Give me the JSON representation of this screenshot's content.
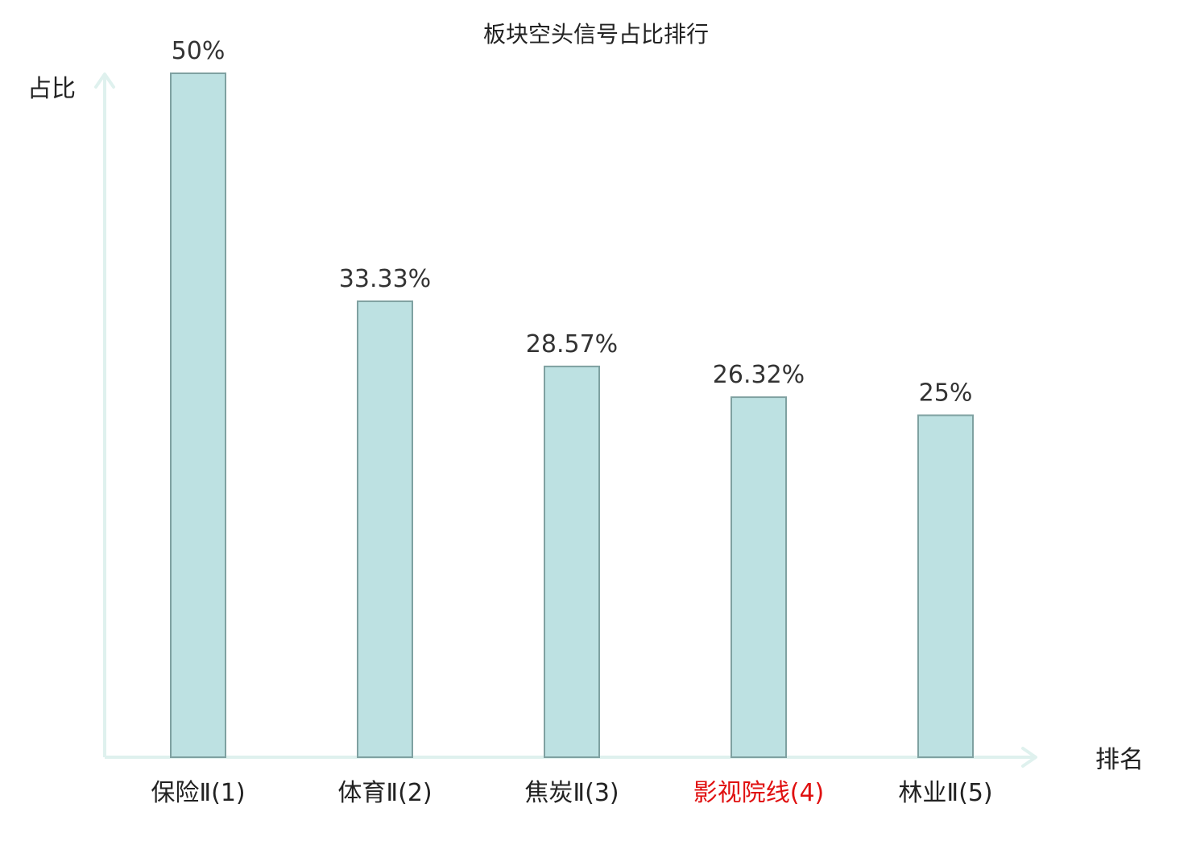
{
  "chart_data": {
    "type": "bar",
    "title": "板块空头信号占比排行",
    "ylabel": "占比",
    "xlabel": "排名",
    "categories": [
      "保险Ⅱ(1)",
      "体育Ⅱ(2)",
      "焦炭Ⅱ(3)",
      "影视院线(4)",
      "林业Ⅱ(5)"
    ],
    "values": [
      50,
      33.33,
      28.57,
      26.32,
      25
    ],
    "value_labels": [
      "50%",
      "33.33%",
      "28.57%",
      "26.32%",
      "25%"
    ],
    "highlight_index": 3,
    "ylim": [
      0,
      50
    ],
    "grid": false,
    "legend": "none",
    "colors": {
      "bar_fill": "#bde1e2",
      "bar_stroke": "#7fa1a1",
      "axis": "#dff1ee",
      "text": "#333333",
      "category_text": "#222222",
      "highlight_text": "#e01010"
    }
  }
}
